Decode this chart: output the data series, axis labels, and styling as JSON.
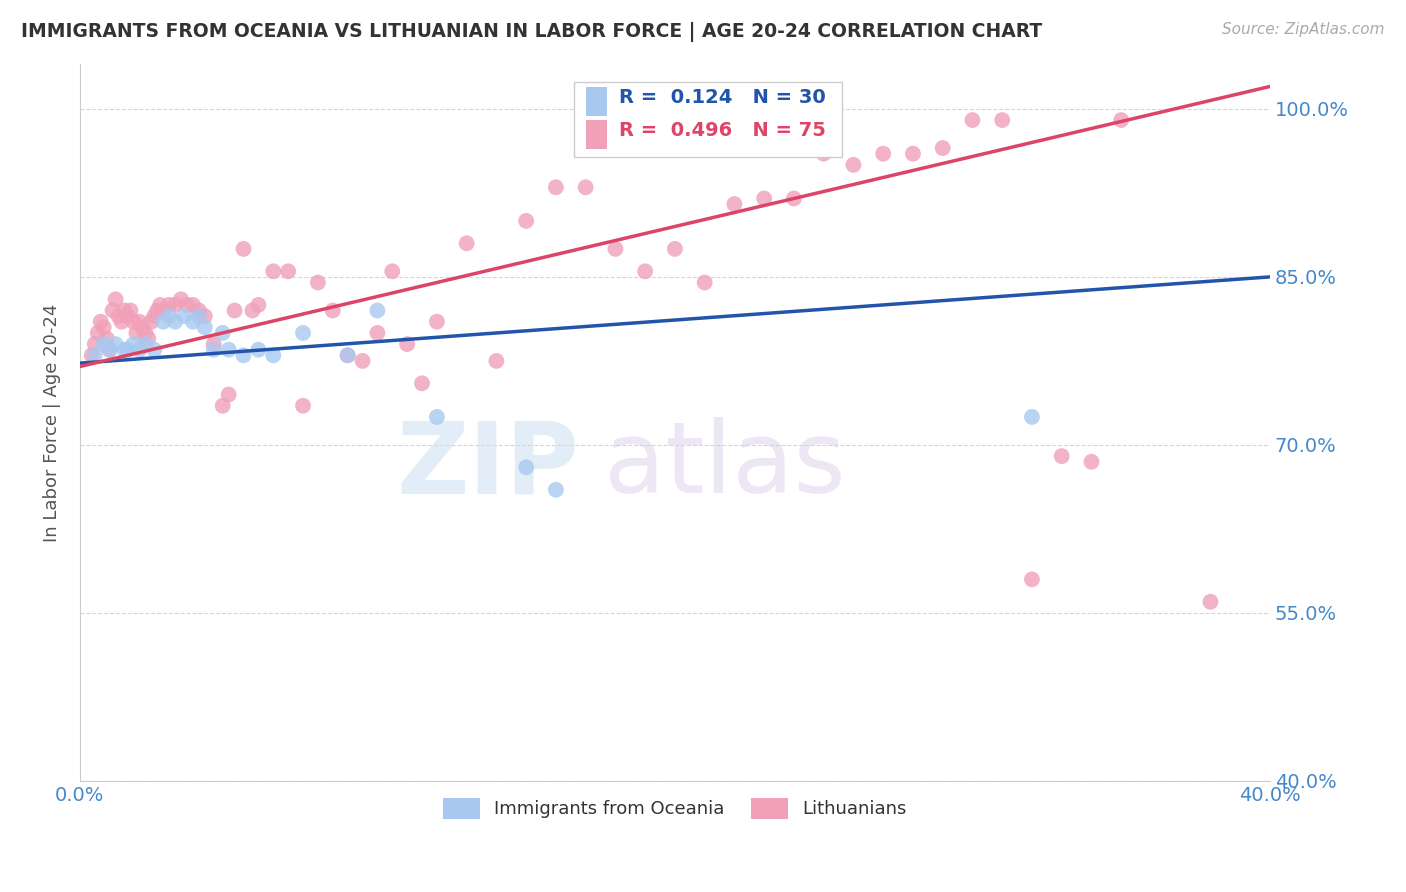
{
  "title": "IMMIGRANTS FROM OCEANIA VS LITHUANIAN IN LABOR FORCE | AGE 20-24 CORRELATION CHART",
  "source": "Source: ZipAtlas.com",
  "ylabel": "In Labor Force | Age 20-24",
  "r_blue": 0.124,
  "n_blue": 30,
  "r_pink": 0.496,
  "n_pink": 75,
  "xlim": [
    0.0,
    0.4
  ],
  "ylim": [
    0.4,
    1.04
  ],
  "yticks": [
    0.4,
    0.55,
    0.7,
    0.85,
    1.0
  ],
  "ytick_labels": [
    "40.0%",
    "55.0%",
    "70.0%",
    "85.0%",
    "100.0%"
  ],
  "xticks": [
    0.0,
    0.05,
    0.1,
    0.15,
    0.2,
    0.25,
    0.3,
    0.35,
    0.4
  ],
  "xtick_labels": [
    "0.0%",
    "",
    "",
    "",
    "",
    "",
    "",
    "",
    "40.0%"
  ],
  "blue_color": "#a8c8f0",
  "pink_color": "#f0a0b8",
  "line_blue_color": "#2255aa",
  "line_pink_color": "#dd4466",
  "title_color": "#333333",
  "tick_label_color": "#4488cc",
  "watermark_zip": "ZIP",
  "watermark_atlas": "atlas",
  "blue_scatter_x": [
    0.005,
    0.008,
    0.01,
    0.012,
    0.015,
    0.016,
    0.018,
    0.02,
    0.022,
    0.025,
    0.028,
    0.03,
    0.032,
    0.035,
    0.038,
    0.04,
    0.042,
    0.045,
    0.048,
    0.05,
    0.055,
    0.06,
    0.065,
    0.075,
    0.09,
    0.1,
    0.12,
    0.15,
    0.16,
    0.32
  ],
  "blue_scatter_y": [
    0.78,
    0.79,
    0.785,
    0.79,
    0.785,
    0.785,
    0.79,
    0.785,
    0.79,
    0.785,
    0.81,
    0.815,
    0.81,
    0.815,
    0.81,
    0.815,
    0.805,
    0.785,
    0.8,
    0.785,
    0.78,
    0.785,
    0.78,
    0.8,
    0.78,
    0.82,
    0.725,
    0.68,
    0.66,
    0.725
  ],
  "pink_scatter_x": [
    0.004,
    0.005,
    0.006,
    0.007,
    0.008,
    0.009,
    0.01,
    0.011,
    0.012,
    0.013,
    0.014,
    0.015,
    0.016,
    0.017,
    0.018,
    0.019,
    0.02,
    0.021,
    0.022,
    0.023,
    0.024,
    0.025,
    0.026,
    0.027,
    0.028,
    0.03,
    0.032,
    0.034,
    0.036,
    0.038,
    0.04,
    0.042,
    0.045,
    0.048,
    0.05,
    0.052,
    0.055,
    0.058,
    0.06,
    0.065,
    0.07,
    0.075,
    0.08,
    0.085,
    0.09,
    0.095,
    0.1,
    0.105,
    0.11,
    0.115,
    0.12,
    0.13,
    0.14,
    0.15,
    0.16,
    0.17,
    0.18,
    0.19,
    0.2,
    0.21,
    0.22,
    0.23,
    0.24,
    0.25,
    0.26,
    0.27,
    0.28,
    0.29,
    0.3,
    0.31,
    0.32,
    0.33,
    0.34,
    0.35,
    0.38
  ],
  "pink_scatter_y": [
    0.78,
    0.79,
    0.8,
    0.81,
    0.805,
    0.795,
    0.785,
    0.82,
    0.83,
    0.815,
    0.81,
    0.82,
    0.815,
    0.82,
    0.81,
    0.8,
    0.81,
    0.805,
    0.8,
    0.795,
    0.81,
    0.815,
    0.82,
    0.825,
    0.82,
    0.825,
    0.825,
    0.83,
    0.825,
    0.825,
    0.82,
    0.815,
    0.79,
    0.735,
    0.745,
    0.82,
    0.875,
    0.82,
    0.825,
    0.855,
    0.855,
    0.735,
    0.845,
    0.82,
    0.78,
    0.775,
    0.8,
    0.855,
    0.79,
    0.755,
    0.81,
    0.88,
    0.775,
    0.9,
    0.93,
    0.93,
    0.875,
    0.855,
    0.875,
    0.845,
    0.915,
    0.92,
    0.92,
    0.96,
    0.95,
    0.96,
    0.96,
    0.965,
    0.99,
    0.99,
    0.58,
    0.69,
    0.685,
    0.99,
    0.56
  ],
  "blue_line_x": [
    0.0,
    0.4
  ],
  "blue_line_y": [
    0.773,
    0.85
  ],
  "pink_line_x": [
    0.0,
    0.4
  ],
  "pink_line_y": [
    0.77,
    1.02
  ]
}
